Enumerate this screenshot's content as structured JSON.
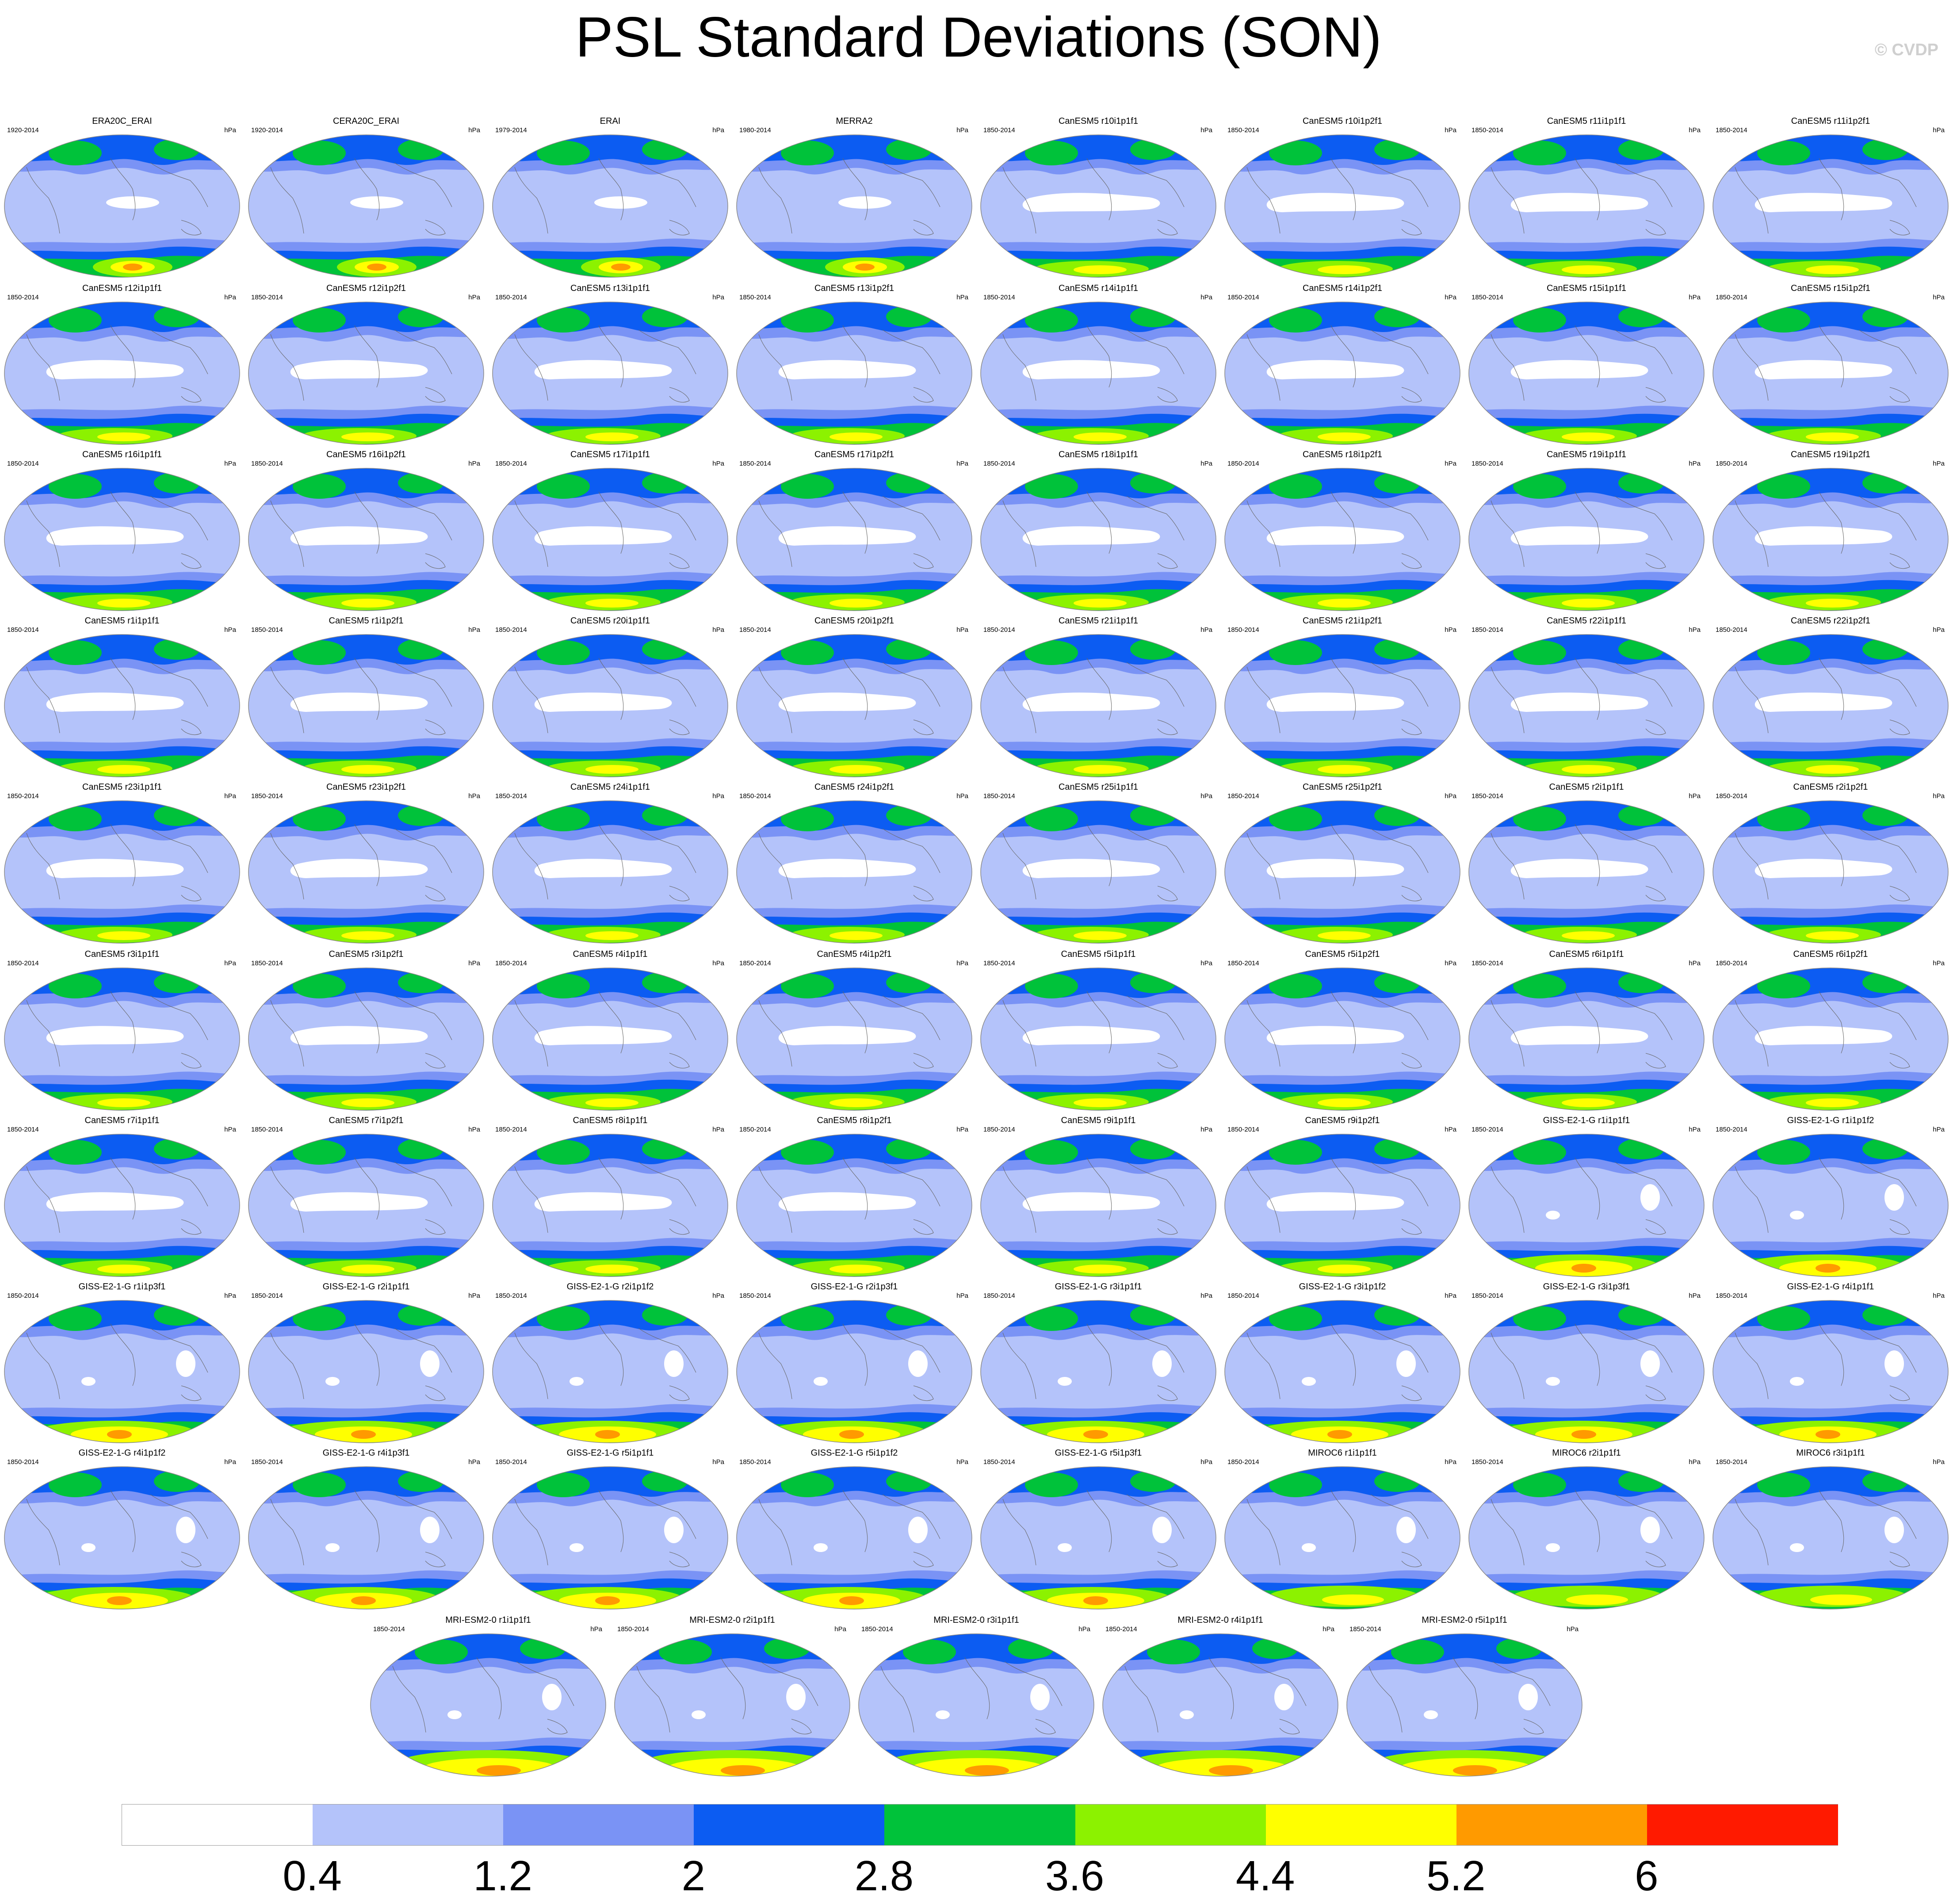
{
  "title": "PSL Standard Deviations (SON)",
  "copyright": "© CVDP",
  "units": "hPa",
  "colorbar": {
    "levels": [
      "0.4",
      "1.2",
      "2",
      "2.8",
      "3.6",
      "4.4",
      "5.2",
      "6"
    ],
    "colors": [
      "#ffffff",
      "#b4c3fa",
      "#7a93f5",
      "#0c5cf2",
      "#00c23a",
      "#8cf200",
      "#ffff00",
      "#ff9a00",
      "#ff1a00"
    ]
  },
  "panels": [
    {
      "title": "ERA20C_ERAI",
      "years": "1920-2014",
      "style": "obs"
    },
    {
      "title": "CERA20C_ERAI",
      "years": "1920-2014",
      "style": "obs"
    },
    {
      "title": "ERAI",
      "years": "1979-2014",
      "style": "obs"
    },
    {
      "title": "MERRA2",
      "years": "1980-2014",
      "style": "obs"
    },
    {
      "title": "CanESM5 r10i1p1f1",
      "years": "1850-2014",
      "style": "can"
    },
    {
      "title": "CanESM5 r10i1p2f1",
      "years": "1850-2014",
      "style": "can"
    },
    {
      "title": "CanESM5 r11i1p1f1",
      "years": "1850-2014",
      "style": "can"
    },
    {
      "title": "CanESM5 r11i1p2f1",
      "years": "1850-2014",
      "style": "can"
    },
    {
      "title": "CanESM5 r12i1p1f1",
      "years": "1850-2014",
      "style": "can"
    },
    {
      "title": "CanESM5 r12i1p2f1",
      "years": "1850-2014",
      "style": "can"
    },
    {
      "title": "CanESM5 r13i1p1f1",
      "years": "1850-2014",
      "style": "can"
    },
    {
      "title": "CanESM5 r13i1p2f1",
      "years": "1850-2014",
      "style": "can"
    },
    {
      "title": "CanESM5 r14i1p1f1",
      "years": "1850-2014",
      "style": "can"
    },
    {
      "title": "CanESM5 r14i1p2f1",
      "years": "1850-2014",
      "style": "can"
    },
    {
      "title": "CanESM5 r15i1p1f1",
      "years": "1850-2014",
      "style": "can"
    },
    {
      "title": "CanESM5 r15i1p2f1",
      "years": "1850-2014",
      "style": "can"
    },
    {
      "title": "CanESM5 r16i1p1f1",
      "years": "1850-2014",
      "style": "can"
    },
    {
      "title": "CanESM5 r16i1p2f1",
      "years": "1850-2014",
      "style": "can"
    },
    {
      "title": "CanESM5 r17i1p1f1",
      "years": "1850-2014",
      "style": "can"
    },
    {
      "title": "CanESM5 r17i1p2f1",
      "years": "1850-2014",
      "style": "can"
    },
    {
      "title": "CanESM5 r18i1p1f1",
      "years": "1850-2014",
      "style": "can"
    },
    {
      "title": "CanESM5 r18i1p2f1",
      "years": "1850-2014",
      "style": "can"
    },
    {
      "title": "CanESM5 r19i1p1f1",
      "years": "1850-2014",
      "style": "can"
    },
    {
      "title": "CanESM5 r19i1p2f1",
      "years": "1850-2014",
      "style": "can"
    },
    {
      "title": "CanESM5 r1i1p1f1",
      "years": "1850-2014",
      "style": "can"
    },
    {
      "title": "CanESM5 r1i1p2f1",
      "years": "1850-2014",
      "style": "can"
    },
    {
      "title": "CanESM5 r20i1p1f1",
      "years": "1850-2014",
      "style": "can"
    },
    {
      "title": "CanESM5 r20i1p2f1",
      "years": "1850-2014",
      "style": "can"
    },
    {
      "title": "CanESM5 r21i1p1f1",
      "years": "1850-2014",
      "style": "can"
    },
    {
      "title": "CanESM5 r21i1p2f1",
      "years": "1850-2014",
      "style": "can"
    },
    {
      "title": "CanESM5 r22i1p1f1",
      "years": "1850-2014",
      "style": "can"
    },
    {
      "title": "CanESM5 r22i1p2f1",
      "years": "1850-2014",
      "style": "can"
    },
    {
      "title": "CanESM5 r23i1p1f1",
      "years": "1850-2014",
      "style": "can"
    },
    {
      "title": "CanESM5 r23i1p2f1",
      "years": "1850-2014",
      "style": "can"
    },
    {
      "title": "CanESM5 r24i1p1f1",
      "years": "1850-2014",
      "style": "can"
    },
    {
      "title": "CanESM5 r24i1p2f1",
      "years": "1850-2014",
      "style": "can"
    },
    {
      "title": "CanESM5 r25i1p1f1",
      "years": "1850-2014",
      "style": "can"
    },
    {
      "title": "CanESM5 r25i1p2f1",
      "years": "1850-2014",
      "style": "can"
    },
    {
      "title": "CanESM5 r2i1p1f1",
      "years": "1850-2014",
      "style": "can"
    },
    {
      "title": "CanESM5 r2i1p2f1",
      "years": "1850-2014",
      "style": "can"
    },
    {
      "title": "CanESM5 r3i1p1f1",
      "years": "1850-2014",
      "style": "can"
    },
    {
      "title": "CanESM5 r3i1p2f1",
      "years": "1850-2014",
      "style": "can"
    },
    {
      "title": "CanESM5 r4i1p1f1",
      "years": "1850-2014",
      "style": "can"
    },
    {
      "title": "CanESM5 r4i1p2f1",
      "years": "1850-2014",
      "style": "can"
    },
    {
      "title": "CanESM5 r5i1p1f1",
      "years": "1850-2014",
      "style": "can"
    },
    {
      "title": "CanESM5 r5i1p2f1",
      "years": "1850-2014",
      "style": "can"
    },
    {
      "title": "CanESM5 r6i1p1f1",
      "years": "1850-2014",
      "style": "can"
    },
    {
      "title": "CanESM5 r6i1p2f1",
      "years": "1850-2014",
      "style": "can"
    },
    {
      "title": "CanESM5 r7i1p1f1",
      "years": "1850-2014",
      "style": "can"
    },
    {
      "title": "CanESM5 r7i1p2f1",
      "years": "1850-2014",
      "style": "can"
    },
    {
      "title": "CanESM5 r8i1p1f1",
      "years": "1850-2014",
      "style": "can"
    },
    {
      "title": "CanESM5 r8i1p2f1",
      "years": "1850-2014",
      "style": "can"
    },
    {
      "title": "CanESM5 r9i1p1f1",
      "years": "1850-2014",
      "style": "can"
    },
    {
      "title": "CanESM5 r9i1p2f1",
      "years": "1850-2014",
      "style": "can"
    },
    {
      "title": "GISS-E2-1-G r1i1p1f1",
      "years": "1850-2014",
      "style": "giss"
    },
    {
      "title": "GISS-E2-1-G r1i1p1f2",
      "years": "1850-2014",
      "style": "giss"
    },
    {
      "title": "GISS-E2-1-G r1i1p3f1",
      "years": "1850-2014",
      "style": "giss"
    },
    {
      "title": "GISS-E2-1-G r2i1p1f1",
      "years": "1850-2014",
      "style": "giss"
    },
    {
      "title": "GISS-E2-1-G r2i1p1f2",
      "years": "1850-2014",
      "style": "giss"
    },
    {
      "title": "GISS-E2-1-G r2i1p3f1",
      "years": "1850-2014",
      "style": "giss"
    },
    {
      "title": "GISS-E2-1-G r3i1p1f1",
      "years": "1850-2014",
      "style": "giss"
    },
    {
      "title": "GISS-E2-1-G r3i1p1f2",
      "years": "1850-2014",
      "style": "giss"
    },
    {
      "title": "GISS-E2-1-G r3i1p3f1",
      "years": "1850-2014",
      "style": "giss"
    },
    {
      "title": "GISS-E2-1-G r4i1p1f1",
      "years": "1850-2014",
      "style": "giss"
    },
    {
      "title": "GISS-E2-1-G r4i1p1f2",
      "years": "1850-2014",
      "style": "giss"
    },
    {
      "title": "GISS-E2-1-G r4i1p3f1",
      "years": "1850-2014",
      "style": "giss"
    },
    {
      "title": "GISS-E2-1-G r5i1p1f1",
      "years": "1850-2014",
      "style": "giss"
    },
    {
      "title": "GISS-E2-1-G r5i1p1f2",
      "years": "1850-2014",
      "style": "giss"
    },
    {
      "title": "GISS-E2-1-G r5i1p3f1",
      "years": "1850-2014",
      "style": "giss"
    },
    {
      "title": "MIROC6 r1i1p1f1",
      "years": "1850-2014",
      "style": "miroc"
    },
    {
      "title": "MIROC6 r2i1p1f1",
      "years": "1850-2014",
      "style": "miroc"
    },
    {
      "title": "MIROC6 r3i1p1f1",
      "years": "1850-2014",
      "style": "miroc"
    },
    {
      "title": "MRI-ESM2-0 r1i1p1f1",
      "years": "1850-2014",
      "style": "mri"
    },
    {
      "title": "MRI-ESM2-0 r2i1p1f1",
      "years": "1850-2014",
      "style": "mri"
    },
    {
      "title": "MRI-ESM2-0 r3i1p1f1",
      "years": "1850-2014",
      "style": "mri"
    },
    {
      "title": "MRI-ESM2-0 r4i1p1f1",
      "years": "1850-2014",
      "style": "mri"
    },
    {
      "title": "MRI-ESM2-0 r5i1p1f1",
      "years": "1850-2014",
      "style": "mri"
    }
  ],
  "chart_data": {
    "type": "heatmap",
    "title": "PSL Standard Deviations (SON)",
    "units": "hPa",
    "contour_levels": [
      0.4,
      1.2,
      2,
      2.8,
      3.6,
      4.4,
      5.2,
      6
    ],
    "panel_count": 77,
    "grid": "global maps, Robinson-like projection"
  }
}
